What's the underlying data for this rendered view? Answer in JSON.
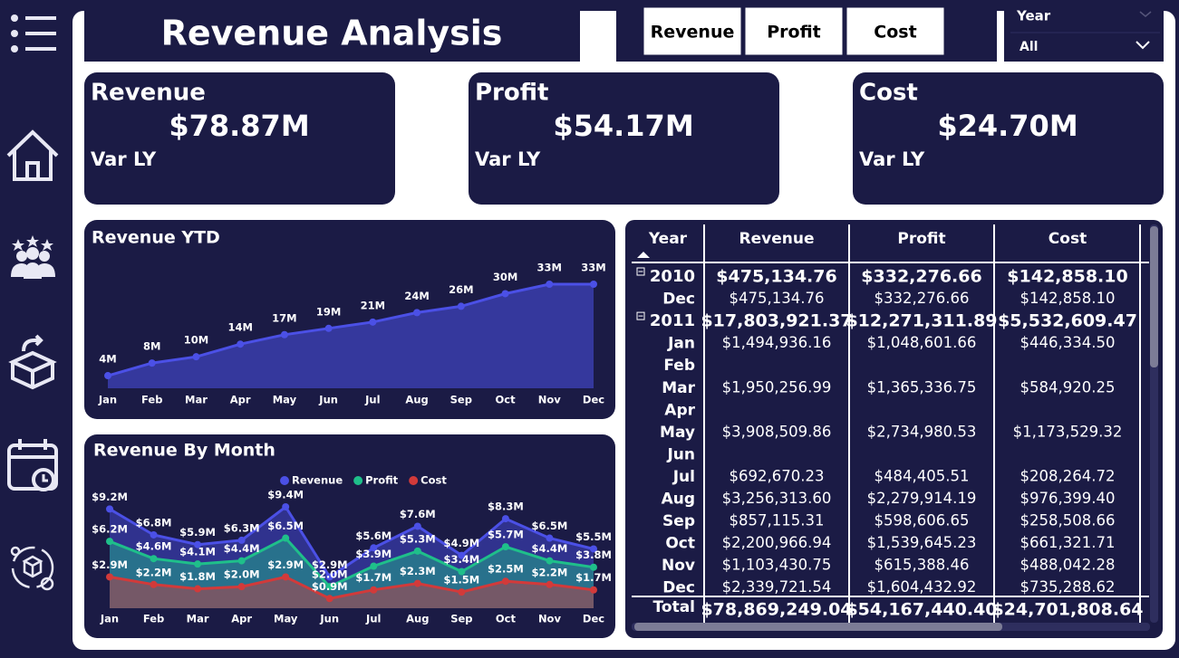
{
  "header": {
    "title": "Revenue Analysis"
  },
  "buttons": [
    "Revenue",
    "Profit",
    "Cost"
  ],
  "slicer": {
    "label": "Year",
    "value": "All"
  },
  "cards": [
    {
      "title": "Revenue",
      "value": "$78.87M",
      "caption": "Var LY"
    },
    {
      "title": "Profit",
      "value": "$54.17M",
      "caption": "Var LY"
    },
    {
      "title": "Cost",
      "value": "$24.70M",
      "caption": "Var LY"
    }
  ],
  "table": {
    "columns": [
      "Year",
      "Revenue",
      "Profit",
      "Cost"
    ],
    "rows": [
      {
        "label": "2010",
        "bold": true,
        "cells": [
          "$475,134.76",
          "$332,276.66",
          "$142,858.10"
        ]
      },
      {
        "label": "Dec",
        "cells": [
          "$475,134.76",
          "$332,276.66",
          "$142,858.10"
        ]
      },
      {
        "label": "2011",
        "bold": true,
        "cells": [
          "$17,803,921.37",
          "$12,271,311.89",
          "$5,532,609.47"
        ]
      },
      {
        "label": "Jan",
        "cells": [
          "$1,494,936.16",
          "$1,048,601.66",
          "$446,334.50"
        ]
      },
      {
        "label": "Feb",
        "cells": [
          null,
          null,
          null
        ]
      },
      {
        "label": "Mar",
        "cells": [
          "$1,950,256.99",
          "$1,365,336.75",
          "$584,920.25"
        ]
      },
      {
        "label": "Apr",
        "cells": [
          null,
          null,
          null
        ]
      },
      {
        "label": "May",
        "cells": [
          "$3,908,509.86",
          "$2,734,980.53",
          "$1,173,529.32"
        ]
      },
      {
        "label": "Jun",
        "cells": [
          null,
          null,
          null
        ]
      },
      {
        "label": "Jul",
        "cells": [
          "$692,670.23",
          "$484,405.51",
          "$208,264.72"
        ]
      },
      {
        "label": "Aug",
        "cells": [
          "$3,256,313.60",
          "$2,279,914.19",
          "$976,399.40"
        ]
      },
      {
        "label": "Sep",
        "cells": [
          "$857,115.31",
          "$598,606.65",
          "$258,508.66"
        ]
      },
      {
        "label": "Oct",
        "cells": [
          "$2,200,966.94",
          "$1,539,645.23",
          "$661,321.71"
        ]
      },
      {
        "label": "Nov",
        "cells": [
          "$1,103,430.75",
          "$615,388.46",
          "$488,042.28"
        ]
      },
      {
        "label": "Dec",
        "cells": [
          "$2,339,721.54",
          "$1,604,432.92",
          "$735,288.62"
        ]
      }
    ],
    "total": {
      "label": "Total",
      "cells": [
        "$78,869,249.04",
        "$54,167,440.40",
        "$24,701,808.64"
      ]
    }
  },
  "chart_data": [
    {
      "type": "area",
      "title": "Revenue YTD",
      "categories": [
        "Jan",
        "Feb",
        "Mar",
        "Apr",
        "May",
        "Jun",
        "Jul",
        "Aug",
        "Sep",
        "Oct",
        "Nov",
        "Dec"
      ],
      "values": [
        4,
        8,
        10,
        14,
        17,
        19,
        21,
        24,
        26,
        30,
        33,
        33
      ],
      "value_labels": [
        "4M",
        "8M",
        "10M",
        "14M",
        "17M",
        "19M",
        "21M",
        "24M",
        "26M",
        "30M",
        "33M",
        "33M"
      ],
      "color": "#4b50e6"
    },
    {
      "type": "area",
      "title": "Revenue By Month",
      "categories": [
        "Jan",
        "Feb",
        "Mar",
        "Apr",
        "May",
        "Jun",
        "Jul",
        "Aug",
        "Sep",
        "Oct",
        "Nov",
        "Dec"
      ],
      "legend": "top",
      "series": [
        {
          "name": "Revenue",
          "color": "#4b50e6",
          "values": [
            9.2,
            6.8,
            5.9,
            6.3,
            9.4,
            2.9,
            5.6,
            7.6,
            4.9,
            8.3,
            6.5,
            5.5
          ],
          "value_labels": [
            "$9.2M",
            "$6.8M",
            "$5.9M",
            "$6.3M",
            "$9.4M",
            "$2.9M",
            "$5.6M",
            "$7.6M",
            "$4.9M",
            "$8.3M",
            "$6.5M",
            "$5.5M"
          ]
        },
        {
          "name": "Profit",
          "color": "#1fbf8a",
          "values": [
            6.2,
            4.6,
            4.1,
            4.4,
            6.5,
            2.0,
            3.9,
            5.3,
            3.4,
            5.7,
            4.4,
            3.8
          ],
          "value_labels": [
            "$6.2M",
            "$4.6M",
            "$4.1M",
            "$4.4M",
            "$6.5M",
            "$2.0M",
            "$3.9M",
            "$5.3M",
            "$3.4M",
            "$5.7M",
            "$4.4M",
            "$3.8M"
          ]
        },
        {
          "name": "Cost",
          "color": "#d23a3a",
          "values": [
            2.9,
            2.2,
            1.8,
            2.0,
            2.9,
            0.9,
            1.7,
            2.3,
            1.5,
            2.5,
            2.2,
            1.7
          ],
          "value_labels": [
            "$2.9M",
            "$2.2M",
            "$1.8M",
            "$2.0M",
            "$2.9M",
            "$0.9M",
            "$1.7M",
            "$2.3M",
            "$1.5M",
            "$2.5M",
            "$2.2M",
            "$1.7M"
          ]
        }
      ]
    }
  ]
}
